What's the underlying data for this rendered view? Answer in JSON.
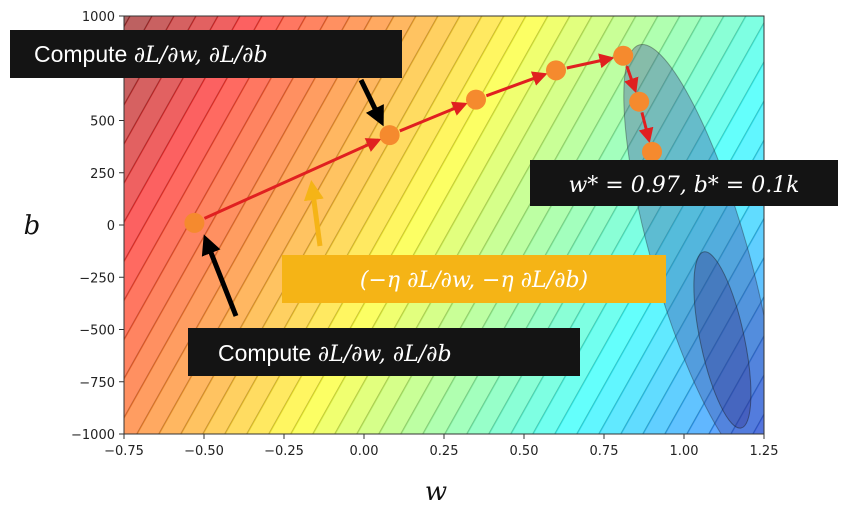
{
  "chart_data": {
    "type": "line",
    "title": "",
    "xlabel": "w",
    "ylabel": "b",
    "xlim": [
      -0.75,
      1.25
    ],
    "ylim": [
      -1000,
      1000
    ],
    "x_ticks": [
      "−0.75",
      "−0.50",
      "−0.25",
      "0.00",
      "0.25",
      "0.50",
      "0.75",
      "1.00",
      "1.25"
    ],
    "y_ticks": [
      "1000",
      "750",
      "500",
      "250",
      "0",
      "−250",
      "−500",
      "−750",
      "−1000"
    ],
    "background": "loss contour (filled, rainbow colormap, minimum near w=1.1, b=-650)",
    "grid": false,
    "series": [
      {
        "x": [
          -0.53,
          0.08,
          0.35,
          0.6,
          0.81,
          0.86,
          0.9
        ],
        "y": [
          10,
          430,
          600,
          740,
          810,
          590,
          350
        ]
      }
    ]
  },
  "colors": {
    "path_point": "#f58a2e",
    "path_arrow": "#e02020",
    "annotation_dark": "#141414",
    "annotation_gold": "#f5b416",
    "pointer_black": "#000000",
    "pointer_gold": "#f5b416"
  },
  "annotations": {
    "top_left": {
      "prefix": "Compute ",
      "math": "∂L/∂w, ∂L/∂b"
    },
    "bottom": {
      "prefix": "Compute ",
      "math": "∂L/∂w, ∂L/∂b"
    },
    "update_rule": {
      "math": "(−η ∂L/∂w, −η ∂L/∂b)"
    },
    "optimum": {
      "math": "w* = 0.97, b* = 0.1k"
    }
  }
}
